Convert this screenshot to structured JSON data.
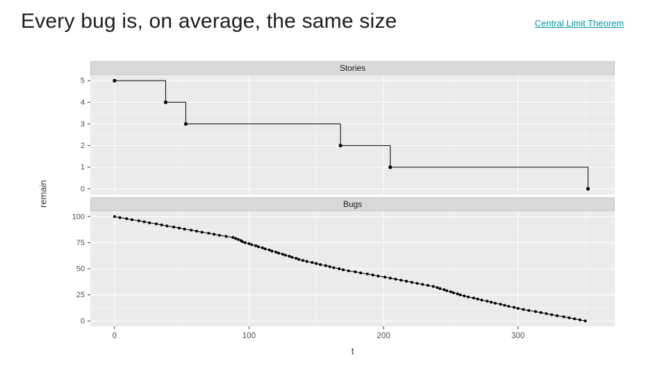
{
  "slide": {
    "title": "Every bug is, on average, the same size",
    "link": {
      "label": "Central Limit Theorem",
      "color": "#0097a7"
    }
  },
  "chart_data": {
    "type": "line",
    "title": "",
    "xlabel": "t",
    "ylabel": "remain",
    "xlim": [
      -18,
      372
    ],
    "xticks": [
      0,
      100,
      200,
      300
    ],
    "x_minor": [
      50,
      150,
      250,
      350
    ],
    "legend": "none",
    "grid": "on",
    "colors": {
      "panel_bg": "#ebebeb",
      "strip_bg": "#d9d9d9",
      "grid_major": "#ffffff",
      "grid_minor": "rgba(255,255,255,0.55)",
      "series": "#000000",
      "tick_text": "#4d4d4d",
      "tick_mark": "#333333"
    },
    "facets": [
      {
        "name": "Stories",
        "style": "step",
        "ylim": [
          -0.26,
          5.26
        ],
        "yticks": [
          0,
          1,
          2,
          3,
          4,
          5
        ],
        "y_minor": [
          0.5,
          1.5,
          2.5,
          3.5,
          4.5
        ],
        "points": [
          [
            0,
            5
          ],
          [
            38,
            4
          ],
          [
            53,
            3
          ],
          [
            168,
            2
          ],
          [
            205,
            1
          ],
          [
            352,
            0
          ]
        ]
      },
      {
        "name": "Bugs",
        "style": "line",
        "ylim": [
          -5.2,
          105.2
        ],
        "yticks": [
          0,
          25,
          50,
          75,
          100
        ],
        "y_minor": [
          12.5,
          37.5,
          62.5,
          87.5
        ],
        "points": [
          [
            0,
            100
          ],
          [
            4,
            99
          ],
          [
            9,
            98
          ],
          [
            13,
            97
          ],
          [
            18,
            96
          ],
          [
            22,
            95
          ],
          [
            26,
            94
          ],
          [
            31,
            93
          ],
          [
            35,
            92
          ],
          [
            39,
            91
          ],
          [
            44,
            90
          ],
          [
            48,
            89
          ],
          [
            52,
            88
          ],
          [
            57,
            87
          ],
          [
            61,
            86
          ],
          [
            65,
            85
          ],
          [
            70,
            84
          ],
          [
            74,
            83
          ],
          [
            78,
            82
          ],
          [
            83,
            81
          ],
          [
            88,
            80
          ],
          [
            90,
            79
          ],
          [
            92,
            78
          ],
          [
            94,
            77
          ],
          [
            95,
            76
          ],
          [
            97,
            75
          ],
          [
            100,
            74
          ],
          [
            102,
            73
          ],
          [
            105,
            72
          ],
          [
            107,
            71
          ],
          [
            110,
            70
          ],
          [
            112,
            69
          ],
          [
            115,
            68
          ],
          [
            117,
            67
          ],
          [
            120,
            66
          ],
          [
            122,
            65
          ],
          [
            125,
            64
          ],
          [
            127,
            63
          ],
          [
            130,
            62
          ],
          [
            132,
            61
          ],
          [
            135,
            60
          ],
          [
            137,
            59
          ],
          [
            140,
            58
          ],
          [
            143,
            57
          ],
          [
            147,
            56
          ],
          [
            150,
            55
          ],
          [
            153,
            54
          ],
          [
            157,
            53
          ],
          [
            160,
            52
          ],
          [
            163,
            51
          ],
          [
            167,
            50
          ],
          [
            170,
            49
          ],
          [
            174,
            48
          ],
          [
            179,
            47
          ],
          [
            183,
            46
          ],
          [
            188,
            45
          ],
          [
            192,
            44
          ],
          [
            196,
            43
          ],
          [
            201,
            42
          ],
          [
            205,
            41
          ],
          [
            209,
            40
          ],
          [
            213,
            39
          ],
          [
            217,
            38
          ],
          [
            221,
            37
          ],
          [
            225,
            36
          ],
          [
            229,
            35
          ],
          [
            233,
            34
          ],
          [
            237,
            33
          ],
          [
            240,
            32
          ],
          [
            242,
            31
          ],
          [
            245,
            30
          ],
          [
            247,
            29
          ],
          [
            250,
            28
          ],
          [
            252,
            27
          ],
          [
            255,
            26
          ],
          [
            257,
            25
          ],
          [
            260,
            24
          ],
          [
            263,
            23
          ],
          [
            267,
            22
          ],
          [
            270,
            21
          ],
          [
            273,
            20
          ],
          [
            277,
            19
          ],
          [
            280,
            18
          ],
          [
            283,
            17
          ],
          [
            287,
            16
          ],
          [
            290,
            15
          ],
          [
            293,
            14
          ],
          [
            297,
            13
          ],
          [
            300,
            12
          ],
          [
            304,
            11
          ],
          [
            308,
            10
          ],
          [
            313,
            9
          ],
          [
            317,
            8
          ],
          [
            321,
            7
          ],
          [
            325,
            6
          ],
          [
            329,
            5
          ],
          [
            334,
            4
          ],
          [
            338,
            3
          ],
          [
            342,
            2
          ],
          [
            346,
            1
          ],
          [
            350,
            0
          ]
        ]
      }
    ]
  }
}
